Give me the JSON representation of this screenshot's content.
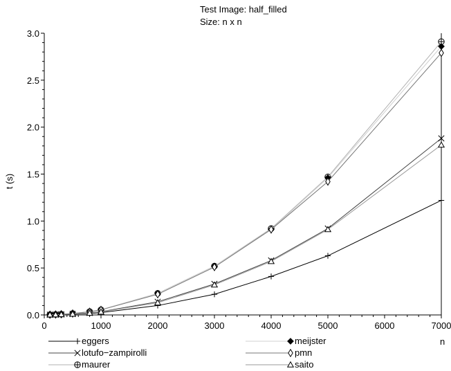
{
  "chart_data": {
    "type": "line",
    "title": "Test Image: half_filled",
    "subtitle": "Size: n x n",
    "xlabel": "n",
    "ylabel": "t (s)",
    "xlim": [
      0,
      7000
    ],
    "ylim": [
      0,
      3.0
    ],
    "x_ticks": [
      0,
      1000,
      2000,
      3000,
      4000,
      5000,
      6000,
      7000
    ],
    "y_ticks": [
      0.0,
      0.5,
      1.0,
      1.5,
      2.0,
      2.5,
      3.0
    ],
    "y_tick_labels": [
      "0.0",
      "0.5",
      "1.0",
      "1.5",
      "2.0",
      "2.5",
      "3.0"
    ],
    "grid": false,
    "legend_position": "bottom",
    "x": [
      100,
      200,
      300,
      500,
      800,
      1000,
      2000,
      3000,
      4000,
      5000,
      7000
    ],
    "series": [
      {
        "name": "eggers",
        "marker": "plus",
        "color": "#000000",
        "values": [
          0.001,
          0.002,
          0.003,
          0.007,
          0.015,
          0.025,
          0.1,
          0.22,
          0.41,
          0.63,
          1.22
        ]
      },
      {
        "name": "lotufo−zampirolli",
        "marker": "x",
        "color": "#444444",
        "values": [
          0.002,
          0.003,
          0.005,
          0.01,
          0.022,
          0.035,
          0.14,
          0.33,
          0.58,
          0.92,
          1.88
        ]
      },
      {
        "name": "maurer",
        "marker": "circle-plus",
        "color": "#b0b0b0",
        "values": [
          0.003,
          0.005,
          0.008,
          0.015,
          0.035,
          0.055,
          0.23,
          0.52,
          0.92,
          1.47,
          2.91
        ]
      },
      {
        "name": "meijster",
        "marker": "filled-diamond",
        "color": "#d0d0d0",
        "values": [
          0.003,
          0.005,
          0.008,
          0.015,
          0.035,
          0.055,
          0.23,
          0.52,
          0.91,
          1.46,
          2.86
        ]
      },
      {
        "name": "pmn",
        "marker": "diamond",
        "color": "#777777",
        "values": [
          0.003,
          0.005,
          0.008,
          0.015,
          0.034,
          0.054,
          0.22,
          0.51,
          0.91,
          1.42,
          2.79
        ]
      },
      {
        "name": "saito",
        "marker": "triangle",
        "color": "#999999",
        "values": [
          0.002,
          0.003,
          0.005,
          0.01,
          0.02,
          0.032,
          0.13,
          0.32,
          0.57,
          0.91,
          1.81
        ]
      }
    ]
  }
}
